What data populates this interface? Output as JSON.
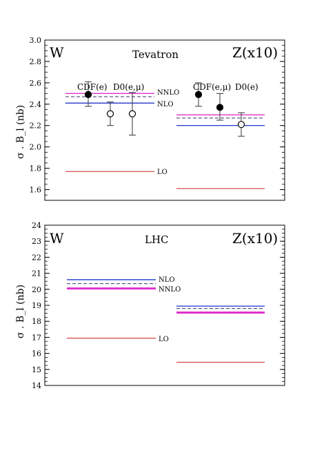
{
  "chart_data": [
    {
      "type": "scatter",
      "title": "Tevatron",
      "ylabel": "σ . B_l  (nb)",
      "ylim": [
        1.5,
        3.0
      ],
      "yticks": [
        1.6,
        1.8,
        2.0,
        2.2,
        2.4,
        2.6,
        2.8,
        3.0
      ],
      "yminor_step": 0.05,
      "corner_labels": {
        "left": "W",
        "right": "Z(x10)"
      },
      "experiment_labels": {
        "W": [
          "CDF(e)",
          "D0(e,μ)"
        ],
        "Z": [
          "CDF(e,μ)",
          "D0(e)"
        ]
      },
      "predictions": [
        {
          "order": "LO",
          "label": "LO",
          "color": "#cc2222",
          "style": "solid",
          "width": 1,
          "W": 1.77,
          "Z": 1.61
        },
        {
          "order": "NLO",
          "label": "NLO",
          "color": "#3344cc",
          "style": "solid",
          "width": 1.4,
          "W": 2.41,
          "Z": 2.2
        },
        {
          "order": "NNLO",
          "label": "NNLO",
          "color": "#dd33cc",
          "style": "solid",
          "width": 1.4,
          "W": 2.5,
          "Z": 2.3
        },
        {
          "order": "NNLO-alt",
          "label": "",
          "color": "#333366",
          "style": "dashed",
          "width": 1,
          "W": 2.47,
          "Z": 2.27
        }
      ],
      "prediction_labels": [
        "NNLO",
        "NLO",
        "LO"
      ],
      "data_points": [
        {
          "group": "W",
          "experiment": "CDF(e)",
          "value": 2.49,
          "err_low": 2.38,
          "err_high": 2.61,
          "filled": true
        },
        {
          "group": "W",
          "experiment": "D0(e,μ)",
          "value": 2.31,
          "err_low": 2.2,
          "err_high": 2.42,
          "filled": false
        },
        {
          "group": "W",
          "experiment": "D0(e,μ)",
          "value": 2.31,
          "err_low": 2.11,
          "err_high": 2.51,
          "filled": false
        },
        {
          "group": "Z",
          "experiment": "CDF(e,μ)",
          "value": 2.49,
          "err_low": 2.38,
          "err_high": 2.6,
          "filled": true
        },
        {
          "group": "Z",
          "experiment": "CDF(e,μ)",
          "value": 2.37,
          "err_low": 2.25,
          "err_high": 2.5,
          "filled": true
        },
        {
          "group": "Z",
          "experiment": "D0(e)",
          "value": 2.21,
          "err_low": 2.1,
          "err_high": 2.32,
          "filled": false
        }
      ]
    },
    {
      "type": "line",
      "title": "LHC",
      "ylabel": "σ . B_l  (nb)",
      "ylim": [
        14,
        24
      ],
      "yticks": [
        14,
        15,
        16,
        17,
        18,
        19,
        20,
        21,
        22,
        23,
        24
      ],
      "yminor_step": 0.25,
      "corner_labels": {
        "left": "W",
        "right": "Z(x10)"
      },
      "predictions": [
        {
          "order": "LO",
          "label": "LO",
          "color": "#cc2222",
          "style": "solid",
          "width": 1,
          "W": 16.95,
          "Z": 15.45
        },
        {
          "order": "NLO",
          "label": "NLO",
          "color": "#3344cc",
          "style": "solid",
          "width": 1.4,
          "W": 20.6,
          "Z": 18.95
        },
        {
          "order": "NNLO",
          "label": "NNLO",
          "color": "#dd33cc",
          "style": "solid",
          "width": 3,
          "W": 20.05,
          "Z": 18.55
        },
        {
          "order": "NNLO-alt",
          "label": "",
          "color": "#333366",
          "style": "dashed",
          "width": 1,
          "W": 20.35,
          "Z": 18.8
        }
      ],
      "prediction_labels": [
        "NLO",
        "NNLO",
        "LO"
      ]
    }
  ]
}
